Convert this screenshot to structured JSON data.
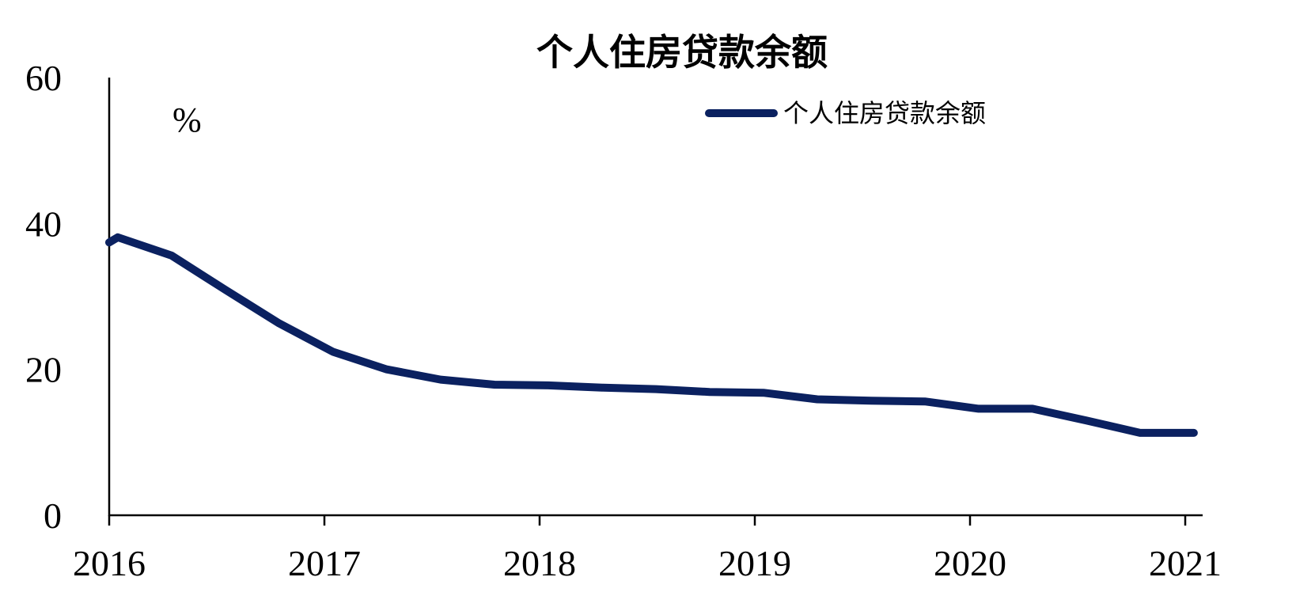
{
  "chart_data": {
    "type": "line",
    "title": "个人住房贷款余额",
    "ylabel": "%",
    "xlabel": "",
    "ylim": [
      0,
      60
    ],
    "yticks": [
      0,
      20,
      40,
      60
    ],
    "xlim": [
      2016,
      2021
    ],
    "xticks": [
      2016,
      2017,
      2018,
      2019,
      2020,
      2021
    ],
    "grid": false,
    "legend_position": "top-right",
    "series": [
      {
        "name": "个人住房贷款余额",
        "color": "#0b2160",
        "x": [
          2016.0,
          2016.04,
          2016.29,
          2016.54,
          2016.79,
          2017.04,
          2017.29,
          2017.54,
          2017.79,
          2018.04,
          2018.29,
          2018.54,
          2018.79,
          2019.04,
          2019.29,
          2019.54,
          2019.79,
          2020.04,
          2020.29,
          2020.54,
          2020.79,
          2021.04
        ],
        "values": [
          37.4,
          38.1,
          35.6,
          30.9,
          26.3,
          22.4,
          20.0,
          18.6,
          17.9,
          17.8,
          17.5,
          17.3,
          16.9,
          16.8,
          15.9,
          15.7,
          15.6,
          14.6,
          14.6,
          13.0,
          11.3,
          11.3
        ]
      }
    ]
  }
}
